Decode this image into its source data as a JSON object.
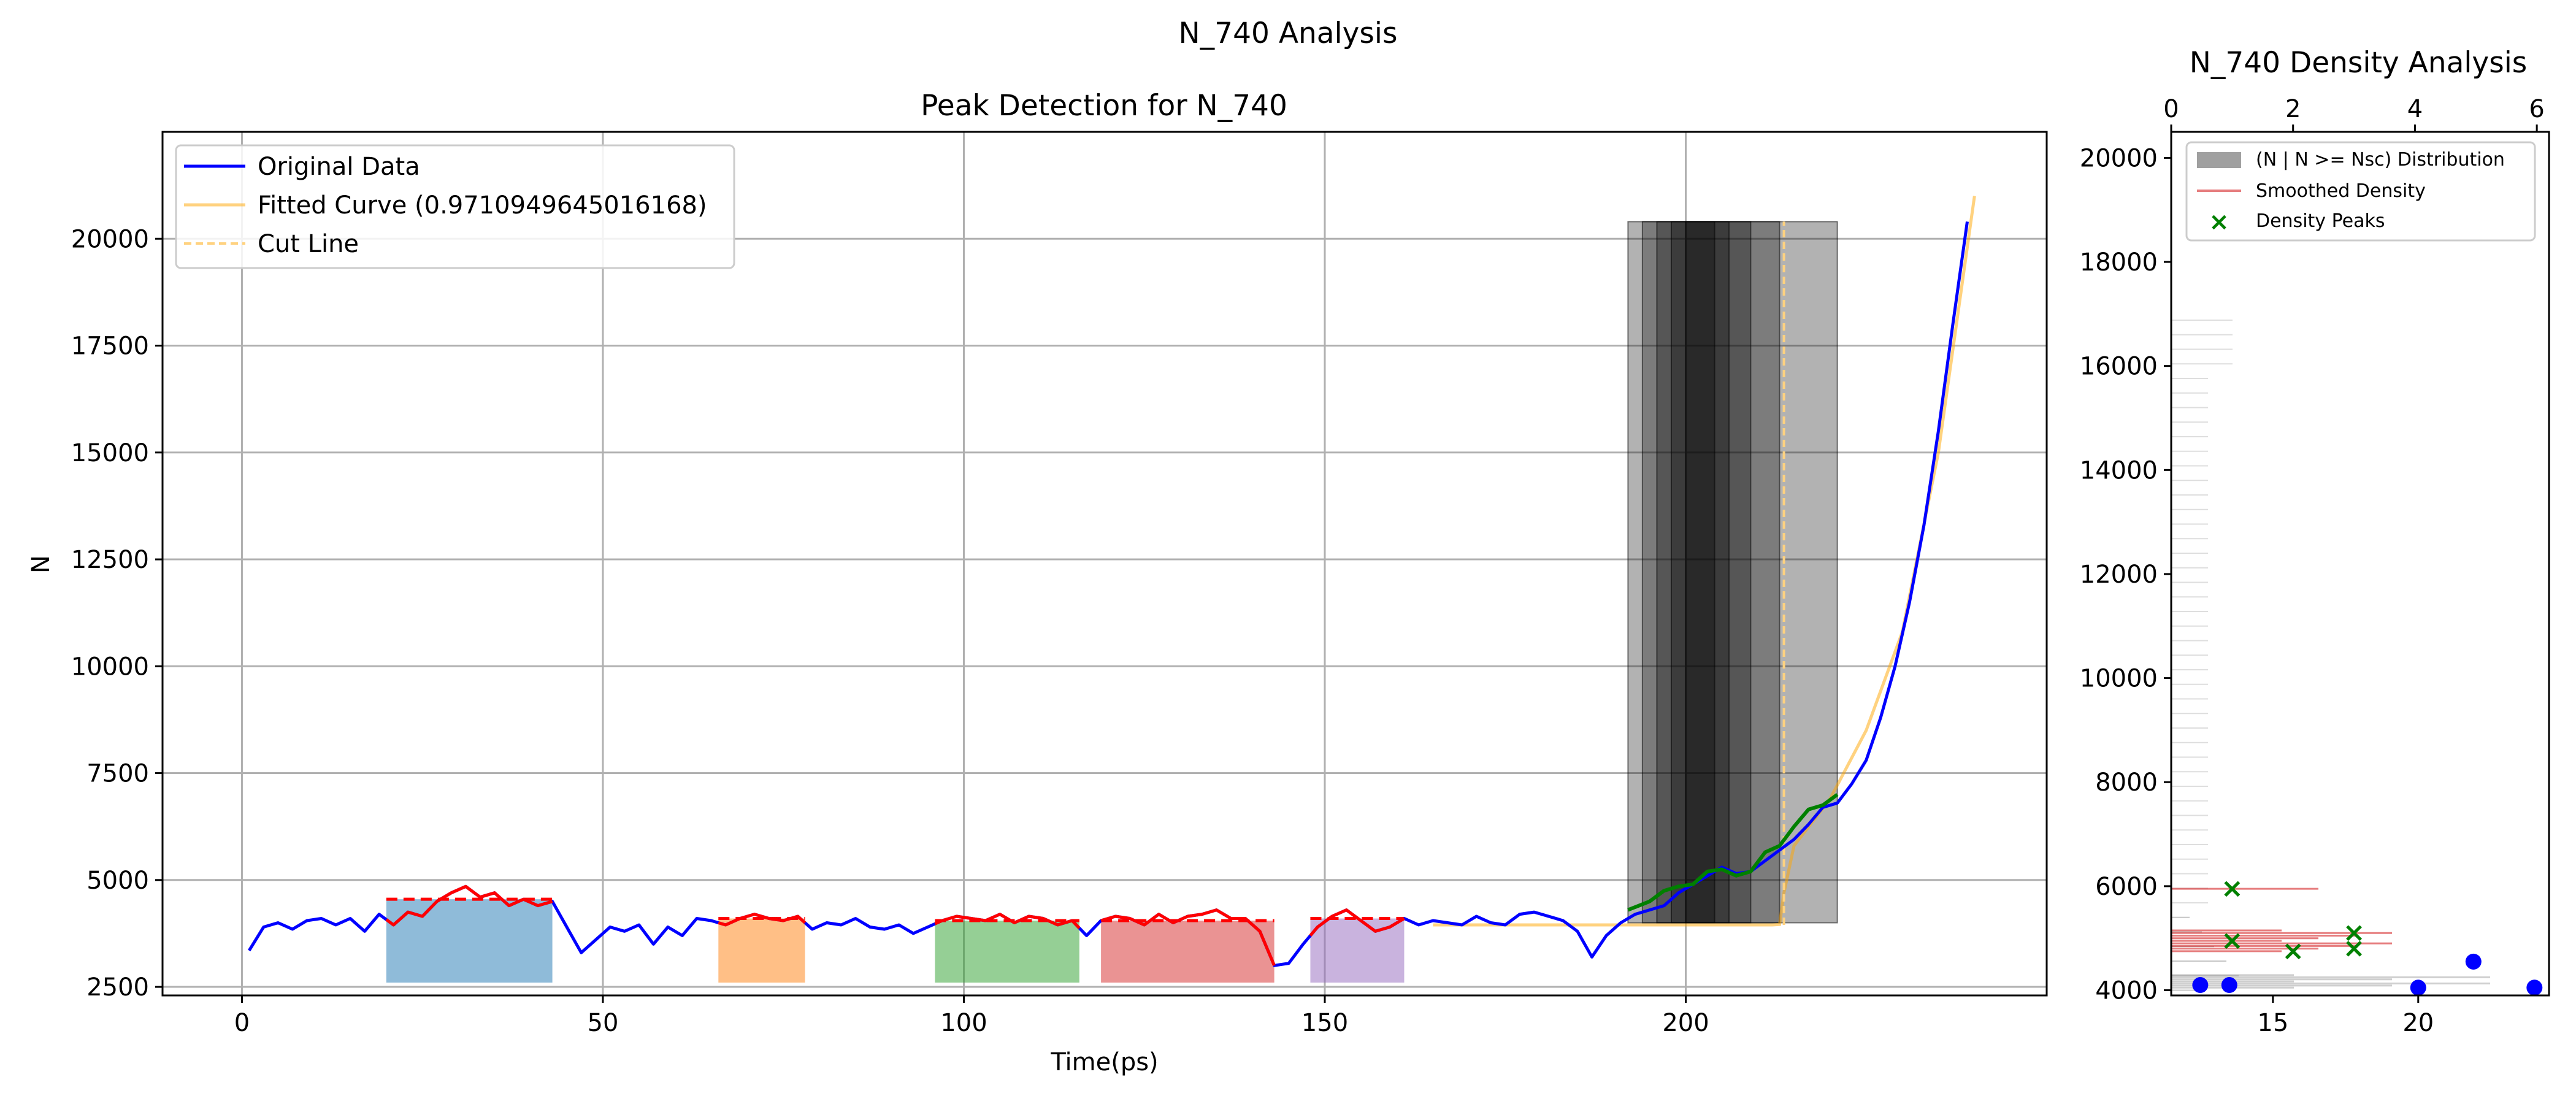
{
  "figure": {
    "suptitle": "N_740 Analysis"
  },
  "chart_data": [
    {
      "type": "line",
      "title": "Peak Detection for N_740",
      "xlabel": "Time(ps)",
      "ylabel": "N",
      "xlim": [
        -11,
        250
      ],
      "ylim": [
        2300,
        22500
      ],
      "xticks": [
        0,
        50,
        100,
        150,
        200
      ],
      "yticks": [
        2500,
        5000,
        7500,
        10000,
        12500,
        15000,
        17500,
        20000
      ],
      "grid": true,
      "legend_position": "top-left",
      "legend": [
        "Original Data",
        "Fitted Curve (0.9710949645016168)",
        "Cut Line"
      ],
      "series": [
        {
          "name": "Original Data",
          "color": "#0000ff",
          "x": [
            1,
            3,
            5,
            7,
            9,
            11,
            13,
            15,
            17,
            19,
            21,
            23,
            25,
            27,
            29,
            31,
            33,
            35,
            37,
            39,
            41,
            43,
            45,
            47,
            49,
            51,
            53,
            55,
            57,
            59,
            61,
            63,
            65,
            67,
            69,
            71,
            73,
            75,
            77,
            79,
            81,
            83,
            85,
            87,
            89,
            91,
            93,
            95,
            97,
            99,
            101,
            103,
            105,
            107,
            109,
            111,
            113,
            115,
            117,
            119,
            121,
            123,
            125,
            127,
            129,
            131,
            133,
            135,
            137,
            139,
            141,
            143,
            145,
            147,
            149,
            151,
            153,
            155,
            157,
            159,
            161,
            163,
            165,
            167,
            169,
            171,
            173,
            175,
            177,
            179,
            181,
            183,
            185,
            187,
            189,
            191,
            193,
            195,
            197,
            199,
            201,
            203,
            205,
            207,
            209,
            211,
            213,
            215,
            217,
            219,
            221,
            223,
            225,
            227,
            229,
            231,
            233,
            235,
            237,
            239
          ],
          "y": [
            3350,
            3900,
            4000,
            3850,
            4050,
            4100,
            3950,
            4100,
            3800,
            4200,
            3950,
            4250,
            4150,
            4500,
            4700,
            4850,
            4600,
            4700,
            4400,
            4550,
            4400,
            4500,
            3900,
            3300,
            3600,
            3900,
            3800,
            3950,
            3500,
            3900,
            3700,
            4100,
            4050,
            3950,
            4100,
            4200,
            4100,
            4050,
            4150,
            3850,
            4000,
            3950,
            4100,
            3900,
            3850,
            3950,
            3750,
            3900,
            4050,
            4150,
            4100,
            4050,
            4200,
            4000,
            4150,
            4100,
            3950,
            4050,
            3700,
            4050,
            4150,
            4100,
            3950,
            4200,
            4000,
            4150,
            4200,
            4300,
            4100,
            4100,
            3800,
            3000,
            3050,
            3500,
            3900,
            4150,
            4300,
            4050,
            3800,
            3900,
            4100,
            3950,
            4050,
            4000,
            3950,
            4150,
            4000,
            3950,
            4200,
            4250,
            4150,
            4050,
            3800,
            3200,
            3700,
            4000,
            4200,
            4300,
            4400,
            4700,
            4900,
            5100,
            5300,
            5150,
            5200,
            5450,
            5700,
            5950,
            6300,
            6700,
            6800,
            7250,
            7800,
            8800,
            10000,
            11500,
            13300,
            15500,
            18000,
            20400
          ]
        },
        {
          "name": "Fitted Curve (0.9710949645016168)",
          "color": "#ffa500",
          "x": [
            165,
            170,
            180,
            190,
            200,
            205,
            210,
            212,
            213,
            213.6,
            215,
            220,
            225,
            230,
            235,
            240
          ],
          "y": [
            3950,
            3950,
            3950,
            3950,
            3950,
            3950,
            3950,
            3950,
            3960,
            4700,
            5800,
            6900,
            8500,
            10800,
            15000,
            21000
          ]
        }
      ],
      "cut_line": {
        "x": 213.6,
        "y": [
          3950,
          20400
        ],
        "color": "#ffd280"
      },
      "peak_regions": [
        {
          "x0": 20,
          "x1": 43,
          "level": 4550,
          "color": "#1f77b4"
        },
        {
          "x0": 66,
          "x1": 78,
          "level": 4100,
          "color": "#ff7f0e"
        },
        {
          "x0": 96,
          "x1": 116,
          "level": 4050,
          "color": "#2ca02c"
        },
        {
          "x0": 119,
          "x1": 143,
          "level": 4050,
          "color": "#d62728"
        },
        {
          "x0": 148,
          "x1": 161,
          "level": 4100,
          "color": "#9467bd"
        }
      ],
      "shaded_bands": [
        {
          "x0": 192,
          "x1": 221
        },
        {
          "x0": 194,
          "x1": 213
        },
        {
          "x0": 196,
          "x1": 209
        },
        {
          "x0": 198,
          "x1": 206
        },
        {
          "x0": 200,
          "x1": 204
        }
      ],
      "green_segment": {
        "x": [
          192,
          195,
          197,
          199,
          201,
          203,
          205,
          207,
          209,
          211,
          213,
          215,
          217,
          219,
          221
        ],
        "y": [
          4300,
          4500,
          4750,
          4850,
          4900,
          5200,
          5250,
          5100,
          5200,
          5650,
          5800,
          6250,
          6650,
          6750,
          7000
        ]
      }
    },
    {
      "type": "bar",
      "orientation": "horizontal",
      "title": "N_740 Density Analysis",
      "x_top_ticks": [
        0,
        2,
        4,
        6
      ],
      "x_bottom_ticks": [
        15,
        20
      ],
      "yticks": [
        4000,
        6000,
        8000,
        10000,
        12000,
        14000,
        16000,
        18000,
        20000
      ],
      "ylim": [
        3900,
        20500
      ],
      "legend_position": "top-right",
      "legend": [
        "(N | N >= Nsc) Distribution",
        "Smoothed Density",
        "Density Peaks"
      ],
      "density_peaks": [
        {
          "x": 1.0,
          "y": 5950
        },
        {
          "x": 1.0,
          "y": 4950
        },
        {
          "x": 2.0,
          "y": 4750
        },
        {
          "x": 3.0,
          "y": 5100
        },
        {
          "x": 3.0,
          "y": 4800
        }
      ],
      "bottom_points": [
        {
          "x": 12.5,
          "y": 4100
        },
        {
          "x": 13.5,
          "y": 4100
        },
        {
          "x": 20.0,
          "y": 4050
        },
        {
          "x": 21.9,
          "y": 4550
        },
        {
          "x": 24.0,
          "y": 4050
        }
      ]
    }
  ]
}
